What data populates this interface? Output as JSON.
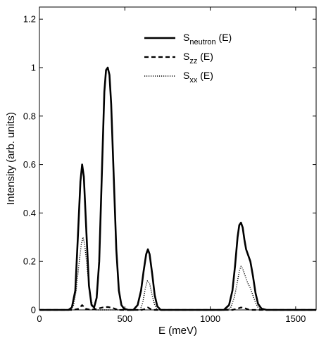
{
  "chart_data": {
    "type": "line",
    "xlabel": "E (meV)",
    "ylabel": "Intensity (arb. units)",
    "xlim": [
      0,
      1620
    ],
    "ylim": [
      0,
      1.25
    ],
    "xticks": [
      0,
      500,
      1000,
      1500
    ],
    "xtick_labels": [
      "0",
      "500",
      "1000",
      "1500"
    ],
    "yticks": [
      0,
      0.2,
      0.4,
      0.6,
      0.8,
      1.0,
      1.2
    ],
    "ytick_labels": [
      "0",
      "0.2",
      "0.4",
      "0.6",
      "0.8",
      "1",
      "1.2"
    ],
    "grid": false,
    "legend": {
      "placement": "top-right",
      "entries": [
        {
          "base": "S",
          "sub": "neutron",
          "suffix": " (E)",
          "style": "solid"
        },
        {
          "base": "S",
          "sub": "zz",
          "suffix": " (E)",
          "style": "dashed"
        },
        {
          "base": "S",
          "sub": "xx",
          "suffix": " (E)",
          "style": "dotted"
        }
      ]
    },
    "series": [
      {
        "style": "solid",
        "x": [
          0,
          170,
          190,
          210,
          225,
          240,
          250,
          260,
          275,
          290,
          305,
          320,
          335,
          350,
          365,
          380,
          390,
          400,
          410,
          420,
          435,
          450,
          465,
          480,
          495,
          520,
          550,
          575,
          595,
          610,
          625,
          635,
          645,
          660,
          675,
          690,
          710,
          750,
          1000,
          1080,
          1110,
          1130,
          1145,
          1160,
          1170,
          1180,
          1190,
          1200,
          1210,
          1220,
          1235,
          1250,
          1265,
          1280,
          1300,
          1330,
          1620
        ],
        "y": [
          0,
          0,
          0.01,
          0.08,
          0.3,
          0.53,
          0.6,
          0.55,
          0.32,
          0.1,
          0.02,
          0.01,
          0.05,
          0.2,
          0.55,
          0.9,
          0.99,
          1.0,
          0.97,
          0.85,
          0.55,
          0.25,
          0.08,
          0.02,
          0.005,
          0,
          0,
          0.02,
          0.08,
          0.16,
          0.23,
          0.25,
          0.23,
          0.15,
          0.06,
          0.015,
          0,
          0,
          0,
          0,
          0.02,
          0.08,
          0.18,
          0.3,
          0.35,
          0.36,
          0.34,
          0.29,
          0.25,
          0.23,
          0.2,
          0.14,
          0.07,
          0.025,
          0.005,
          0,
          0
        ]
      },
      {
        "style": "dashed",
        "x": [
          0,
          200,
          230,
          250,
          270,
          300,
          340,
          370,
          400,
          430,
          460,
          600,
          620,
          635,
          650,
          670,
          1130,
          1160,
          1180,
          1200,
          1230,
          1620
        ],
        "y": [
          0,
          0,
          0.005,
          0.02,
          0.005,
          0,
          0.005,
          0.01,
          0.012,
          0.008,
          0,
          0,
          0.004,
          0.01,
          0.004,
          0,
          0,
          0.005,
          0.01,
          0.008,
          0,
          0
        ]
      },
      {
        "style": "dotted",
        "x": [
          0,
          180,
          200,
          215,
          230,
          245,
          255,
          265,
          280,
          295,
          310,
          330,
          590,
          605,
          620,
          632,
          645,
          660,
          675,
          690,
          1090,
          1120,
          1140,
          1155,
          1170,
          1180,
          1190,
          1205,
          1220,
          1235,
          1250,
          1265,
          1280,
          1310,
          1620
        ],
        "y": [
          0,
          0,
          0.02,
          0.08,
          0.18,
          0.27,
          0.3,
          0.27,
          0.17,
          0.07,
          0.02,
          0,
          0,
          0.03,
          0.09,
          0.12,
          0.11,
          0.06,
          0.02,
          0,
          0,
          0.01,
          0.05,
          0.1,
          0.16,
          0.18,
          0.17,
          0.14,
          0.11,
          0.09,
          0.06,
          0.03,
          0.01,
          0,
          0
        ]
      }
    ]
  }
}
